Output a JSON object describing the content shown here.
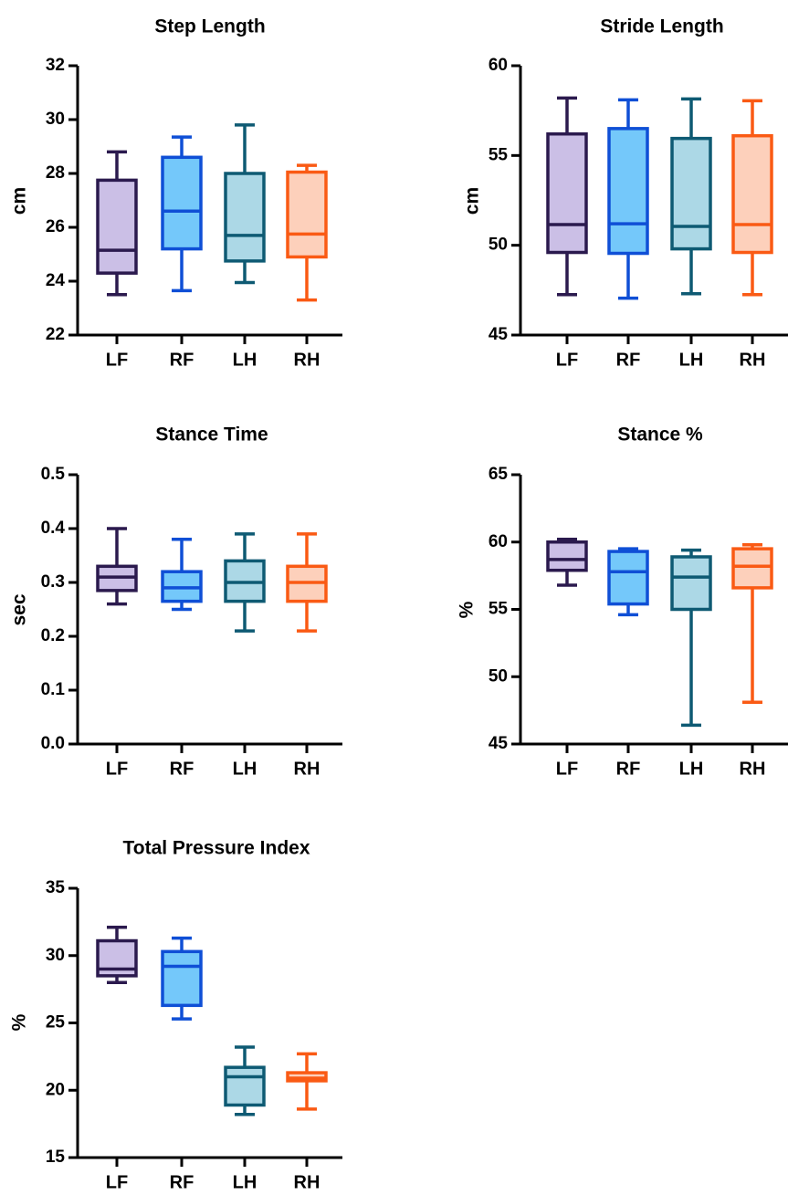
{
  "figure": {
    "colors": {
      "LF": {
        "stroke": "#2b1a4e",
        "fill": "#cbbfe6"
      },
      "RF": {
        "stroke": "#0f4fd6",
        "fill": "#74c8fa"
      },
      "LH": {
        "stroke": "#0e5a73",
        "fill": "#acd8e6"
      },
      "RH": {
        "stroke": "#fa5a14",
        "fill": "#fdd0bb"
      }
    }
  },
  "chart_data": [
    {
      "type": "box",
      "title": "Step Length",
      "ylabel": "cm",
      "ylim": [
        22,
        32
      ],
      "yticks": [
        22,
        24,
        26,
        28,
        30,
        32
      ],
      "ytick_labels": [
        "22",
        "24",
        "26",
        "28",
        "30",
        "32"
      ],
      "categories": [
        "LF",
        "RF",
        "LH",
        "RH"
      ],
      "boxes": [
        {
          "min": 23.5,
          "q1": 24.3,
          "median": 25.15,
          "q3": 27.75,
          "max": 28.8
        },
        {
          "min": 23.65,
          "q1": 25.2,
          "median": 26.6,
          "q3": 28.6,
          "max": 29.35
        },
        {
          "min": 23.95,
          "q1": 24.75,
          "median": 25.7,
          "q3": 28.0,
          "max": 29.8
        },
        {
          "min": 23.3,
          "q1": 24.9,
          "median": 25.75,
          "q3": 28.05,
          "max": 28.3
        }
      ]
    },
    {
      "type": "box",
      "title": "Stride Length",
      "ylabel": "cm",
      "ylim": [
        45,
        60
      ],
      "yticks": [
        45,
        50,
        55,
        60
      ],
      "ytick_labels": [
        "45",
        "50",
        "55",
        "60"
      ],
      "categories": [
        "LF",
        "RF",
        "LH",
        "RH"
      ],
      "boxes": [
        {
          "min": 47.25,
          "q1": 49.6,
          "median": 51.15,
          "q3": 56.2,
          "max": 58.2
        },
        {
          "min": 47.05,
          "q1": 49.55,
          "median": 51.2,
          "q3": 56.5,
          "max": 58.1
        },
        {
          "min": 47.3,
          "q1": 49.8,
          "median": 51.05,
          "q3": 55.95,
          "max": 58.15
        },
        {
          "min": 47.25,
          "q1": 49.6,
          "median": 51.15,
          "q3": 56.1,
          "max": 58.05
        }
      ]
    },
    {
      "type": "box",
      "title": "Stance Time",
      "ylabel": "sec",
      "ylim": [
        0.0,
        0.5
      ],
      "yticks": [
        0.0,
        0.1,
        0.2,
        0.3,
        0.4,
        0.5
      ],
      "ytick_labels": [
        "0.0",
        "0.1",
        "0.2",
        "0.3",
        "0.4",
        "0.5"
      ],
      "categories": [
        "LF",
        "RF",
        "LH",
        "RH"
      ],
      "boxes": [
        {
          "min": 0.26,
          "q1": 0.285,
          "median": 0.31,
          "q3": 0.33,
          "max": 0.4
        },
        {
          "min": 0.25,
          "q1": 0.265,
          "median": 0.29,
          "q3": 0.32,
          "max": 0.38
        },
        {
          "min": 0.21,
          "q1": 0.265,
          "median": 0.3,
          "q3": 0.34,
          "max": 0.39
        },
        {
          "min": 0.21,
          "q1": 0.265,
          "median": 0.3,
          "q3": 0.33,
          "max": 0.39
        }
      ]
    },
    {
      "type": "box",
      "title": "Stance %",
      "ylabel": "%",
      "ylim": [
        45,
        65
      ],
      "yticks": [
        45,
        50,
        55,
        60,
        65
      ],
      "ytick_labels": [
        "45",
        "50",
        "55",
        "60",
        "65"
      ],
      "categories": [
        "LF",
        "RF",
        "LH",
        "RH"
      ],
      "boxes": [
        {
          "min": 56.8,
          "q1": 57.9,
          "median": 58.7,
          "q3": 60.0,
          "max": 60.2
        },
        {
          "min": 54.6,
          "q1": 55.4,
          "median": 57.8,
          "q3": 59.3,
          "max": 59.5
        },
        {
          "min": 46.4,
          "q1": 55.0,
          "median": 57.4,
          "q3": 58.9,
          "max": 59.4
        },
        {
          "min": 48.1,
          "q1": 56.6,
          "median": 58.2,
          "q3": 59.5,
          "max": 59.8
        }
      ]
    },
    {
      "type": "box",
      "title": "Total Pressure Index",
      "ylabel": "%",
      "ylim": [
        15,
        35
      ],
      "yticks": [
        15,
        20,
        25,
        30,
        35
      ],
      "ytick_labels": [
        "15",
        "20",
        "25",
        "30",
        "35"
      ],
      "categories": [
        "LF",
        "RF",
        "LH",
        "RH"
      ],
      "boxes": [
        {
          "min": 28.0,
          "q1": 28.5,
          "median": 29.0,
          "q3": 31.1,
          "max": 32.1
        },
        {
          "min": 25.3,
          "q1": 26.3,
          "median": 29.2,
          "q3": 30.3,
          "max": 31.3
        },
        {
          "min": 18.2,
          "q1": 18.9,
          "median": 21.0,
          "q3": 21.7,
          "max": 23.2
        },
        {
          "min": 18.6,
          "q1": 20.7,
          "median": 20.9,
          "q3": 21.3,
          "max": 22.7
        }
      ]
    }
  ]
}
